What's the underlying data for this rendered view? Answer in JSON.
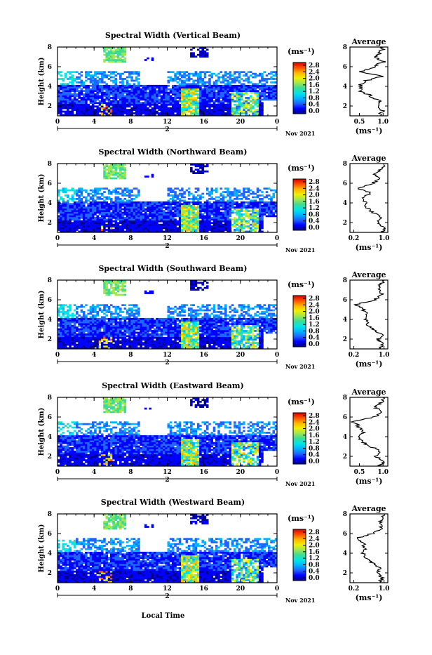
{
  "chart_data": {
    "type": "heatmap",
    "common": {
      "xlabel": "Local Time",
      "x_ticks": [
        "0",
        "4",
        "8",
        "12",
        "16",
        "20",
        "0"
      ],
      "x_range": [
        0,
        24
      ],
      "date_day": "2",
      "date_month_year": "Nov 2021",
      "ylabel": "Height (km)",
      "y_ticks": [
        "2",
        "4",
        "6",
        "8"
      ],
      "y_range": [
        1,
        8
      ],
      "colorbar_unit": "(ms⁻¹)",
      "colorbar_ticks": [
        "0.0",
        "0.4",
        "0.8",
        "1.2",
        "1.6",
        "2.0",
        "2.4",
        "2.8"
      ],
      "colorbar_range": [
        0,
        3.0
      ],
      "colorscale": [
        "#00008b",
        "#0000ff",
        "#1e64ff",
        "#00b4ff",
        "#00e6e6",
        "#3cdc96",
        "#a0e650",
        "#f0f000",
        "#ffb400",
        "#ff5000",
        "#d20000"
      ],
      "average_title": "Average",
      "average_unit": "(ms⁻¹)",
      "average_y_ticks": [
        "2",
        "4",
        "6",
        "8"
      ]
    },
    "panels": [
      {
        "title": "Spectral Width (Vertical Beam)",
        "avg_ticks": [
          "0.5",
          "1.0"
        ],
        "avg_xlim": [
          0.3,
          1.1
        ],
        "profile": [
          [
            1.0,
            0.9
          ],
          [
            1.5,
            1.0
          ],
          [
            2.0,
            0.85
          ],
          [
            2.5,
            0.95
          ],
          [
            3.0,
            0.75
          ],
          [
            3.5,
            0.55
          ],
          [
            4.0,
            0.5
          ],
          [
            4.5,
            0.6
          ],
          [
            5.0,
            0.95
          ],
          [
            5.5,
            0.55
          ],
          [
            6.0,
            0.8
          ],
          [
            6.5,
            1.0
          ],
          [
            7.0,
            0.85
          ],
          [
            7.5,
            0.95
          ],
          [
            8.0,
            1.0
          ]
        ]
      },
      {
        "title": "Spectral Width (Northward Beam)",
        "avg_ticks": [
          "0.2",
          "1.0"
        ],
        "avg_xlim": [
          0.1,
          1.1
        ],
        "profile": [
          [
            1.0,
            0.95
          ],
          [
            1.5,
            1.0
          ],
          [
            2.0,
            0.85
          ],
          [
            2.5,
            0.95
          ],
          [
            3.0,
            0.7
          ],
          [
            3.5,
            0.55
          ],
          [
            4.0,
            0.5
          ],
          [
            4.5,
            0.45
          ],
          [
            5.0,
            0.65
          ],
          [
            5.5,
            0.3
          ],
          [
            6.0,
            0.7
          ],
          [
            6.5,
            0.9
          ],
          [
            7.0,
            0.75
          ],
          [
            7.5,
            0.95
          ],
          [
            8.0,
            1.0
          ]
        ]
      },
      {
        "title": "Spectral Width (Southward Beam)",
        "avg_ticks": [
          "0.2",
          "1.0"
        ],
        "avg_xlim": [
          0.1,
          1.1
        ],
        "profile": [
          [
            1.0,
            0.9
          ],
          [
            1.5,
            0.95
          ],
          [
            2.0,
            0.85
          ],
          [
            2.5,
            0.95
          ],
          [
            3.0,
            0.7
          ],
          [
            3.5,
            0.55
          ],
          [
            4.0,
            0.5
          ],
          [
            4.5,
            0.55
          ],
          [
            5.0,
            0.45
          ],
          [
            5.5,
            0.25
          ],
          [
            6.0,
            0.75
          ],
          [
            6.5,
            0.95
          ],
          [
            7.0,
            0.85
          ],
          [
            7.5,
            0.9
          ],
          [
            8.0,
            1.0
          ]
        ]
      },
      {
        "title": "Spectral Width (Eastward Beam)",
        "avg_ticks": [
          "0.5",
          "1.0"
        ],
        "avg_xlim": [
          0.3,
          1.1
        ],
        "profile": [
          [
            1.0,
            0.95
          ],
          [
            1.5,
            1.0
          ],
          [
            2.0,
            0.85
          ],
          [
            2.5,
            0.95
          ],
          [
            3.0,
            0.75
          ],
          [
            3.5,
            0.55
          ],
          [
            4.0,
            0.45
          ],
          [
            4.5,
            0.6
          ],
          [
            5.0,
            0.5
          ],
          [
            5.5,
            0.35
          ],
          [
            6.0,
            0.8
          ],
          [
            6.5,
            1.0
          ],
          [
            7.0,
            0.85
          ],
          [
            7.5,
            0.95
          ],
          [
            8.0,
            1.0
          ]
        ]
      },
      {
        "title": "Spectral Width (Westward Beam)",
        "avg_ticks": [
          "0.2",
          "1.0"
        ],
        "avg_xlim": [
          0.1,
          1.1
        ],
        "profile": [
          [
            1.0,
            0.9
          ],
          [
            1.5,
            0.95
          ],
          [
            2.0,
            0.85
          ],
          [
            2.5,
            0.9
          ],
          [
            3.0,
            0.7
          ],
          [
            3.5,
            0.55
          ],
          [
            4.0,
            0.45
          ],
          [
            4.5,
            0.5
          ],
          [
            5.0,
            0.45
          ],
          [
            5.5,
            0.25
          ],
          [
            6.0,
            0.7
          ],
          [
            6.5,
            0.95
          ],
          [
            7.0,
            0.9
          ],
          [
            7.5,
            0.95
          ],
          [
            8.0,
            1.0
          ]
        ]
      }
    ]
  }
}
